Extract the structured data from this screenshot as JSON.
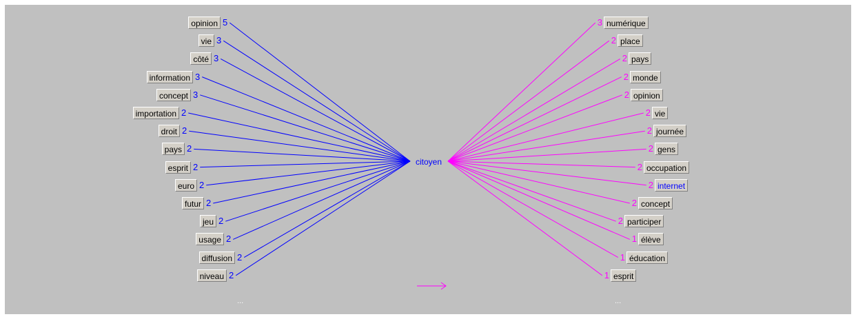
{
  "center": {
    "word": "citoyen"
  },
  "colors": {
    "background": "#c0c0c0",
    "left_edges": "#0000ff",
    "right_edges": "#ff00ff",
    "highlight_text": "#0000ff"
  },
  "left_words": [
    {
      "word": "opinion",
      "count": "5"
    },
    {
      "word": "vie",
      "count": "3"
    },
    {
      "word": "côté",
      "count": "3"
    },
    {
      "word": "information",
      "count": "3"
    },
    {
      "word": "concept",
      "count": "3"
    },
    {
      "word": "importation",
      "count": "2"
    },
    {
      "word": "droit",
      "count": "2"
    },
    {
      "word": "pays",
      "count": "2"
    },
    {
      "word": "esprit",
      "count": "2"
    },
    {
      "word": "euro",
      "count": "2"
    },
    {
      "word": "futur",
      "count": "2"
    },
    {
      "word": "jeu",
      "count": "2"
    },
    {
      "word": "usage",
      "count": "2"
    },
    {
      "word": "diffusion",
      "count": "2"
    },
    {
      "word": "niveau",
      "count": "2"
    }
  ],
  "right_words": [
    {
      "word": "numérique",
      "count": "3"
    },
    {
      "word": "place",
      "count": "2"
    },
    {
      "word": "pays",
      "count": "2"
    },
    {
      "word": "monde",
      "count": "2"
    },
    {
      "word": "opinion",
      "count": "2"
    },
    {
      "word": "vie",
      "count": "2"
    },
    {
      "word": "journée",
      "count": "2"
    },
    {
      "word": "gens",
      "count": "2"
    },
    {
      "word": "occupation",
      "count": "2"
    },
    {
      "word": "internet",
      "count": "2",
      "highlighted": true
    },
    {
      "word": "concept",
      "count": "2"
    },
    {
      "word": "participer",
      "count": "2"
    },
    {
      "word": "élève",
      "count": "1"
    },
    {
      "word": "éducation",
      "count": "1"
    },
    {
      "word": "esprit",
      "count": "1"
    }
  ],
  "more_left": "...",
  "more_right": "...",
  "direction_icon": "right-arrow-icon"
}
